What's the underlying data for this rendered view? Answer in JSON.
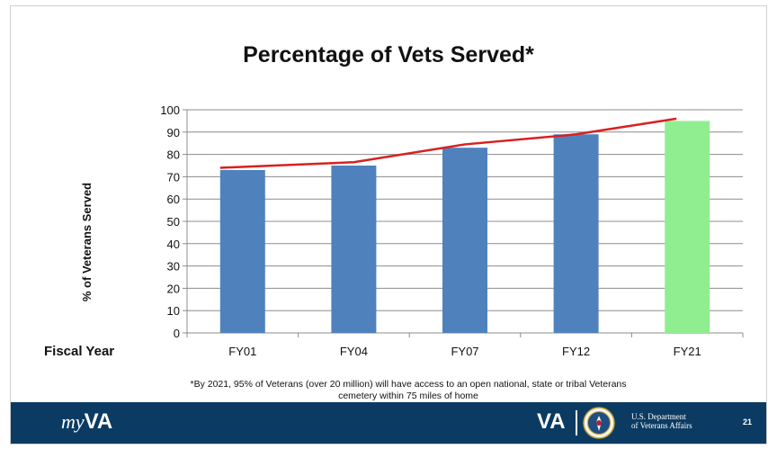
{
  "slide": {
    "title": "Percentage of Vets Served*",
    "footnote_line1": "*By 2021, 95% of Veterans (over 20 million) will have access to an open national, state or tribal Veterans",
    "footnote_line2": "cemetery within 75 miles of home",
    "page_number": "21"
  },
  "footer": {
    "brand_my": "my",
    "brand_va": "VA",
    "va_mark": "VA",
    "dept_line1": "U.S. Department",
    "dept_line2": "of Veterans Affairs",
    "bg_color": "#0b3b63"
  },
  "chart_data": {
    "type": "bar",
    "categories": [
      "FY01",
      "FY04",
      "FY07",
      "FY12",
      "FY21"
    ],
    "series": [
      {
        "type": "bar",
        "values": [
          73,
          75,
          83,
          89,
          95
        ],
        "colors": [
          "#4f81bd",
          "#4f81bd",
          "#4f81bd",
          "#4f81bd",
          "#90ee90"
        ]
      },
      {
        "type": "line",
        "values": [
          74,
          76.5,
          84.5,
          89,
          96
        ],
        "color": "#d92020"
      }
    ],
    "ylabel": "% of Veterans Served",
    "xlabel": "Fiscal Year",
    "ylim": [
      0,
      100
    ],
    "yticks": [
      0,
      10,
      20,
      30,
      40,
      50,
      60,
      70,
      80,
      90,
      100
    ],
    "grid": true
  }
}
